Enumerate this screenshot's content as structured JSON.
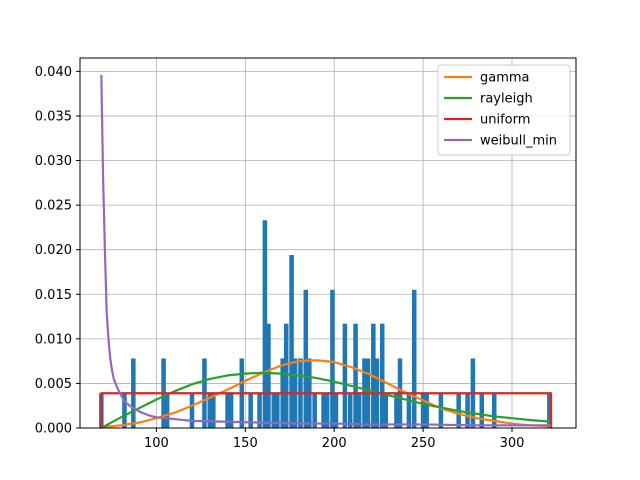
{
  "chart_data": {
    "type": "histogram-with-density-lines",
    "xlim": [
      57,
      336
    ],
    "ylim": [
      0,
      0.0415
    ],
    "xticks": [
      100,
      150,
      200,
      250,
      300
    ],
    "yticks": [
      0.0,
      0.005,
      0.01,
      0.015,
      0.02,
      0.025,
      0.03,
      0.035,
      0.04
    ],
    "ytick_labels": [
      "0.000",
      "0.005",
      "0.010",
      "0.015",
      "0.020",
      "0.025",
      "0.030",
      "0.035",
      "0.040"
    ],
    "grid": true,
    "legend_position": "top-right",
    "histogram": {
      "color": "#1f77b4",
      "bin_width": 2.54,
      "bins": [
        {
          "x": 69,
          "h": 0.0039
        },
        {
          "x": 82,
          "h": 0.0039
        },
        {
          "x": 87,
          "h": 0.0078
        },
        {
          "x": 104,
          "h": 0.0078
        },
        {
          "x": 106,
          "h": 0.0039
        },
        {
          "x": 120,
          "h": 0.0039
        },
        {
          "x": 127,
          "h": 0.0078
        },
        {
          "x": 130,
          "h": 0.0039
        },
        {
          "x": 132,
          "h": 0.0039
        },
        {
          "x": 140,
          "h": 0.0039
        },
        {
          "x": 142,
          "h": 0.0039
        },
        {
          "x": 148,
          "h": 0.0078
        },
        {
          "x": 153,
          "h": 0.0039
        },
        {
          "x": 158,
          "h": 0.0039
        },
        {
          "x": 161,
          "h": 0.0233
        },
        {
          "x": 163,
          "h": 0.0117
        },
        {
          "x": 166,
          "h": 0.0039
        },
        {
          "x": 168,
          "h": 0.0039
        },
        {
          "x": 171,
          "h": 0.0078
        },
        {
          "x": 173,
          "h": 0.0117
        },
        {
          "x": 176,
          "h": 0.0194
        },
        {
          "x": 178,
          "h": 0.0078
        },
        {
          "x": 181,
          "h": 0.0078
        },
        {
          "x": 184,
          "h": 0.0155
        },
        {
          "x": 186,
          "h": 0.0078
        },
        {
          "x": 189,
          "h": 0.0039
        },
        {
          "x": 194,
          "h": 0.0039
        },
        {
          "x": 196,
          "h": 0.0039
        },
        {
          "x": 199,
          "h": 0.0155
        },
        {
          "x": 201,
          "h": 0.0039
        },
        {
          "x": 206,
          "h": 0.0117
        },
        {
          "x": 209,
          "h": 0.0039
        },
        {
          "x": 212,
          "h": 0.0117
        },
        {
          "x": 214,
          "h": 0.0039
        },
        {
          "x": 217,
          "h": 0.0078
        },
        {
          "x": 219,
          "h": 0.0078
        },
        {
          "x": 222,
          "h": 0.0117
        },
        {
          "x": 224,
          "h": 0.0078
        },
        {
          "x": 227,
          "h": 0.0117
        },
        {
          "x": 229,
          "h": 0.0039
        },
        {
          "x": 235,
          "h": 0.0039
        },
        {
          "x": 237,
          "h": 0.0078
        },
        {
          "x": 242,
          "h": 0.0039
        },
        {
          "x": 245,
          "h": 0.0155
        },
        {
          "x": 250,
          "h": 0.0039
        },
        {
          "x": 252,
          "h": 0.0039
        },
        {
          "x": 260,
          "h": 0.0039
        },
        {
          "x": 270,
          "h": 0.0039
        },
        {
          "x": 275,
          "h": 0.0039
        },
        {
          "x": 278,
          "h": 0.0078
        },
        {
          "x": 283,
          "h": 0.0039
        },
        {
          "x": 290,
          "h": 0.0039
        },
        {
          "x": 321,
          "h": 0.0039
        }
      ]
    },
    "series": [
      {
        "name": "gamma",
        "color": "#ff7f0e",
        "x": [
          69,
          80,
          90,
          100,
          110,
          120,
          130,
          140,
          150,
          160,
          170,
          180,
          190,
          200,
          210,
          220,
          230,
          240,
          250,
          260,
          270,
          280,
          290,
          300,
          310,
          322
        ],
        "y": [
          0.0001,
          0.0003,
          0.0006,
          0.0011,
          0.0017,
          0.0025,
          0.0034,
          0.0043,
          0.0053,
          0.0062,
          0.007,
          0.0075,
          0.0076,
          0.0074,
          0.0068,
          0.006,
          0.005,
          0.004,
          0.0031,
          0.0022,
          0.0016,
          0.0011,
          0.0008,
          0.0005,
          0.0003,
          0.0002
        ]
      },
      {
        "name": "rayleigh",
        "color": "#2ca02c",
        "x": [
          69,
          80,
          90,
          100,
          110,
          120,
          130,
          140,
          150,
          160,
          170,
          180,
          190,
          200,
          210,
          220,
          230,
          240,
          250,
          260,
          270,
          280,
          290,
          300,
          310,
          322
        ],
        "y": [
          0.0,
          0.0012,
          0.0022,
          0.0032,
          0.0041,
          0.0049,
          0.0055,
          0.0059,
          0.0061,
          0.0062,
          0.0061,
          0.0059,
          0.0056,
          0.0052,
          0.0047,
          0.0042,
          0.0037,
          0.0032,
          0.0027,
          0.0023,
          0.0019,
          0.0016,
          0.0013,
          0.0011,
          0.0009,
          0.0007
        ]
      },
      {
        "name": "uniform",
        "color": "#d62728",
        "x": [
          69,
          69,
          322,
          322
        ],
        "y": [
          0.0,
          0.0039,
          0.0039,
          0.0
        ]
      },
      {
        "name": "weibull_min",
        "color": "#9467bd",
        "x": [
          69,
          70,
          71,
          72,
          73,
          74,
          75,
          76,
          78,
          80,
          82,
          85,
          88,
          92,
          96,
          100,
          110,
          120,
          140,
          160,
          180,
          200,
          220,
          250,
          280,
          322
        ],
        "y": [
          0.0396,
          0.028,
          0.02,
          0.013,
          0.01,
          0.0078,
          0.0065,
          0.0055,
          0.0045,
          0.0037,
          0.003,
          0.0025,
          0.0021,
          0.0017,
          0.0014,
          0.0012,
          0.001,
          0.0008,
          0.0007,
          0.0006,
          0.0005,
          0.0005,
          0.0004,
          0.0004,
          0.0003,
          0.0003
        ]
      }
    ]
  }
}
